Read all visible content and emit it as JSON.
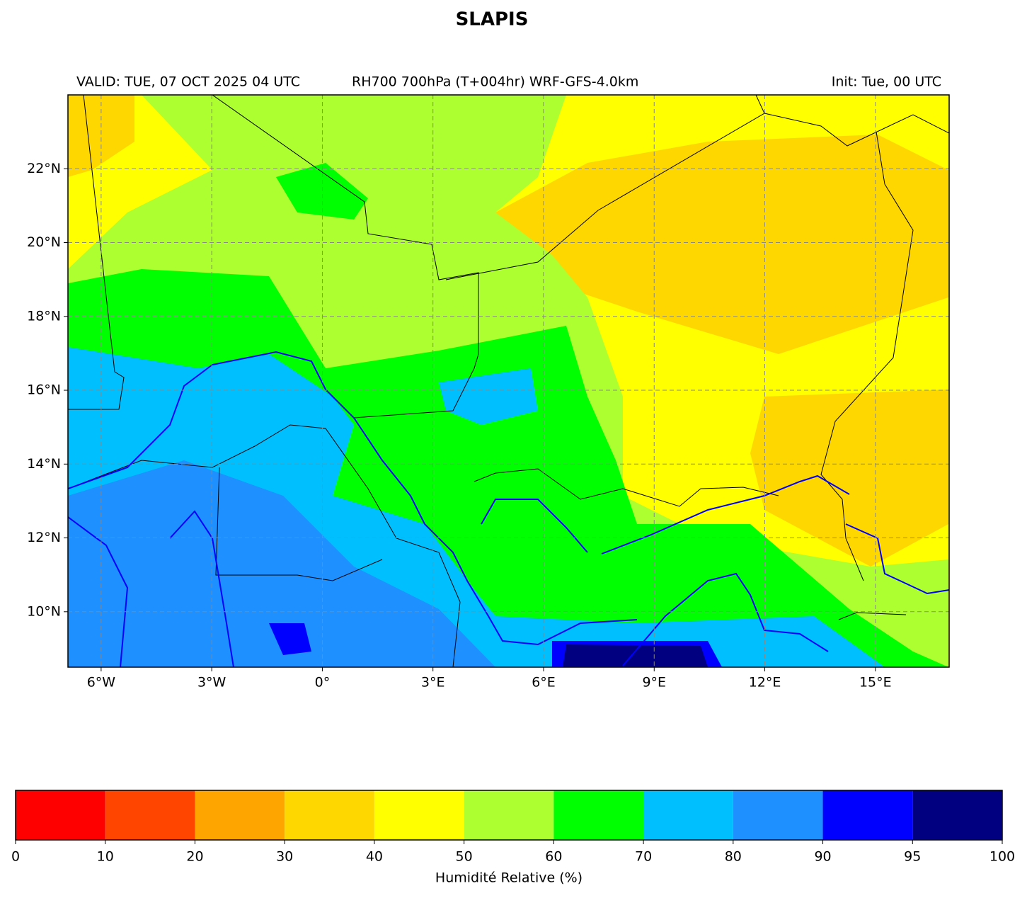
{
  "title": "SLAPIS",
  "subtitle_left": "VALID: TUE, 07 OCT 2025 04 UTC",
  "subtitle_center": "RH700 700hPa (T+004hr) WRF-GFS-4.0km",
  "subtitle_right": "Init: Tue, 00 UTC",
  "map": {
    "xlim": [
      -6.9,
      17
    ],
    "ylim": [
      8.5,
      24
    ],
    "grid": true,
    "xticks": [
      {
        "value": -6,
        "label": "6°W"
      },
      {
        "value": -3,
        "label": "3°W"
      },
      {
        "value": 0,
        "label": "0°"
      },
      {
        "value": 3,
        "label": "3°E"
      },
      {
        "value": 6,
        "label": "6°E"
      },
      {
        "value": 9,
        "label": "9°E"
      },
      {
        "value": 12,
        "label": "12°E"
      },
      {
        "value": 15,
        "label": "15°E"
      }
    ],
    "yticks": [
      {
        "value": 10,
        "label": "10°N"
      },
      {
        "value": 12,
        "label": "12°N"
      },
      {
        "value": 14,
        "label": "14°N"
      },
      {
        "value": 16,
        "label": "16°N"
      },
      {
        "value": 18,
        "label": "18°N"
      },
      {
        "value": 20,
        "label": "20°N"
      },
      {
        "value": 22,
        "label": "22°N"
      }
    ]
  },
  "colorbar": {
    "label": "Humidité Relative (%)",
    "ticks": [
      0,
      10,
      20,
      30,
      40,
      50,
      60,
      70,
      80,
      90,
      95,
      100
    ],
    "colors": [
      "#ff0000",
      "#ff4500",
      "#ffa500",
      "#ffd700",
      "#ffff00",
      "#adff2f",
      "#00ff00",
      "#00bfff",
      "#1e90ff",
      "#0000ff",
      "#000080"
    ]
  }
}
